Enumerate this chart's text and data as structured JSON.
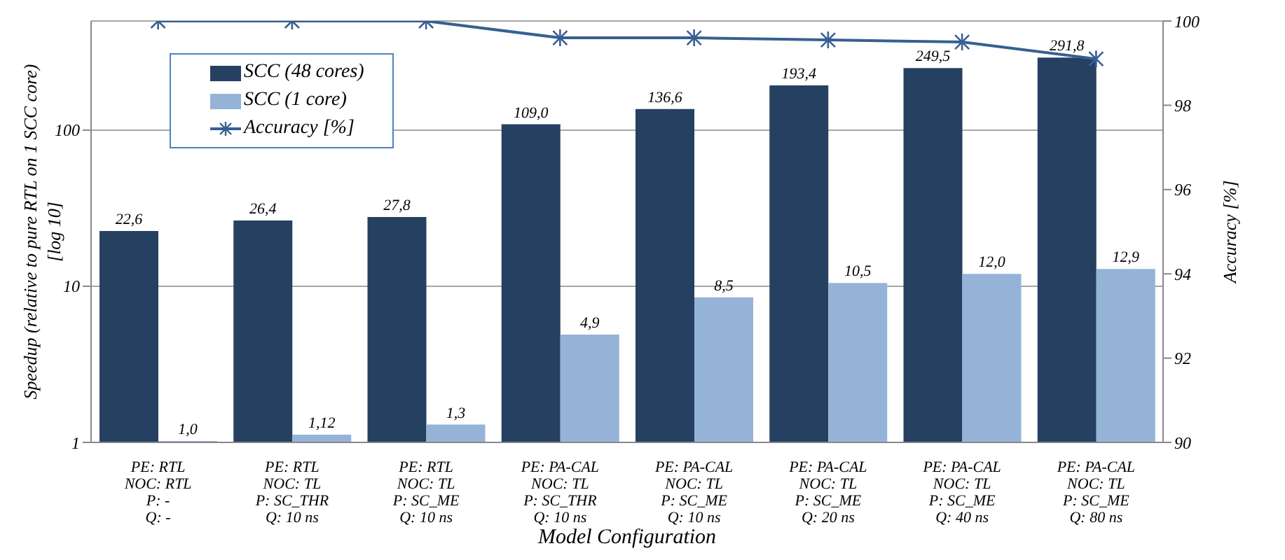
{
  "chart_data": {
    "type": "bar",
    "xlabel": "Model Configuration",
    "ylabel": "Speedup (relative to pure RTL on 1 SCC core)\n[log 10]",
    "y2label": "Accuracy [%]",
    "categories": [
      "PE: RTL\nNOC: RTL\nP: -\nQ: -",
      "PE: RTL\nNOC: TL\nP: SC_THR\nQ: 10 ns",
      "PE: RTL\nNOC: TL\nP: SC_ME\nQ: 10 ns",
      "PE: PA-CAL\nNOC: TL\nP: SC_THR\nQ: 10 ns",
      "PE: PA-CAL\nNOC: TL\nP: SC_ME\nQ: 10 ns",
      "PE: PA-CAL\nNOC: TL\nP: SC_ME\nQ: 20 ns",
      "PE: PA-CAL\nNOC: TL\nP: SC_ME\nQ: 40 ns",
      "PE: PA-CAL\nNOC: TL\nP: SC_ME\nQ: 80 ns"
    ],
    "series": [
      {
        "name": "SCC (48 cores)",
        "color": "#264061",
        "values": [
          22.6,
          26.4,
          27.8,
          109.0,
          136.6,
          193.4,
          249.5,
          291.8
        ],
        "value_labels": [
          "22,6",
          "26,4",
          "27,8",
          "109,0",
          "136,6",
          "193,4",
          "249,5",
          "291,8"
        ]
      },
      {
        "name": "SCC (1 core)",
        "color": "#95b3d7",
        "values": [
          1.0,
          1.12,
          1.3,
          4.9,
          8.5,
          10.5,
          12.0,
          12.9
        ],
        "value_labels": [
          "1,0",
          "1,12",
          "1,3",
          "4,9",
          "8,5",
          "10,5",
          "12,0",
          "12,9"
        ]
      },
      {
        "name": "Accuracy [%]",
        "type": "line",
        "axis": "y2",
        "color": "#376092",
        "marker": "cross",
        "values": [
          100,
          100,
          100,
          99.6,
          99.6,
          99.55,
          99.5,
          99.1
        ]
      }
    ],
    "log": "y",
    "ylim": [
      1,
      500
    ],
    "yticks": [
      1,
      10,
      100
    ],
    "y2lim": [
      90,
      100
    ],
    "y2ticks": [
      90,
      92,
      94,
      96,
      98,
      100
    ],
    "grid": "y",
    "legend": "top left"
  }
}
